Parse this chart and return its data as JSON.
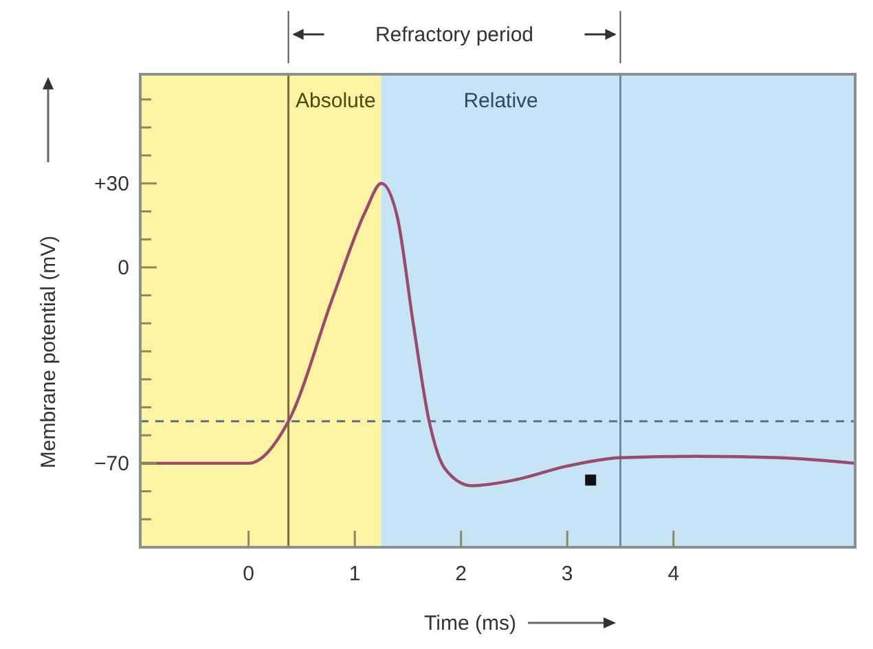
{
  "chart_data": {
    "type": "line",
    "xlabel": "Time (ms)",
    "ylabel": "Membrane potential (mV)",
    "x": [
      -1.02,
      0,
      0.375,
      0.8,
      1.1,
      1.25,
      1.4,
      1.55,
      1.7,
      1.85,
      2.1,
      2.5,
      3.0,
      3.5,
      4.2,
      5.0,
      5.71
    ],
    "series": [
      {
        "color": "#9a4a6a",
        "values": [
          -70,
          -70,
          -55,
          -10,
          20,
          30,
          18,
          -20,
          -55,
          -72,
          -78,
          -76,
          -71,
          -68,
          -67.5,
          -68,
          -70
        ]
      }
    ],
    "xlim": [
      -1.02,
      5.71
    ],
    "ylim": [
      -100,
      69
    ],
    "xticks": [
      0,
      1,
      2,
      3,
      4
    ],
    "yticks": [
      {
        "value": 60,
        "label": null
      },
      {
        "value": 50,
        "label": null
      },
      {
        "value": 40,
        "label": null
      },
      {
        "value": 30,
        "label": "+30"
      },
      {
        "value": 20,
        "label": null
      },
      {
        "value": 10,
        "label": null
      },
      0,
      {
        "value": -10,
        "label": null
      },
      {
        "value": -20,
        "label": null
      },
      {
        "value": -30,
        "label": null
      },
      {
        "value": -40,
        "label": null
      },
      {
        "value": -50,
        "label": null
      },
      {
        "value": -60,
        "label": null
      },
      {
        "value": -70,
        "label": "−70"
      },
      {
        "value": -80,
        "label": null
      },
      {
        "value": -90,
        "label": null
      }
    ],
    "bands": [
      {
        "axis": "x",
        "from": -1.02,
        "to": 1.25,
        "label": "Absolute",
        "color": "#fcf3a3"
      },
      {
        "axis": "x",
        "from": 1.25,
        "to": 3.5,
        "label": "Relative",
        "color": "#c6e4f5"
      },
      {
        "axis": "x",
        "from": 3.5,
        "to": 5.71,
        "color": "#c6e4f5"
      }
    ],
    "annotations": [
      "Refractory period"
    ],
    "ref_lines": [
      {
        "axis": "y",
        "value": -55,
        "line_style": "dashed",
        "color": "#5a7090"
      },
      {
        "axis": "x",
        "value": 0.375,
        "line_style": "solid",
        "color": "#7a6a40"
      },
      {
        "axis": "x",
        "value": 3.5,
        "line_style": "solid",
        "color": "#6a8aa0"
      }
    ],
    "grid": false,
    "marker": "none",
    "line_style": "solid"
  }
}
